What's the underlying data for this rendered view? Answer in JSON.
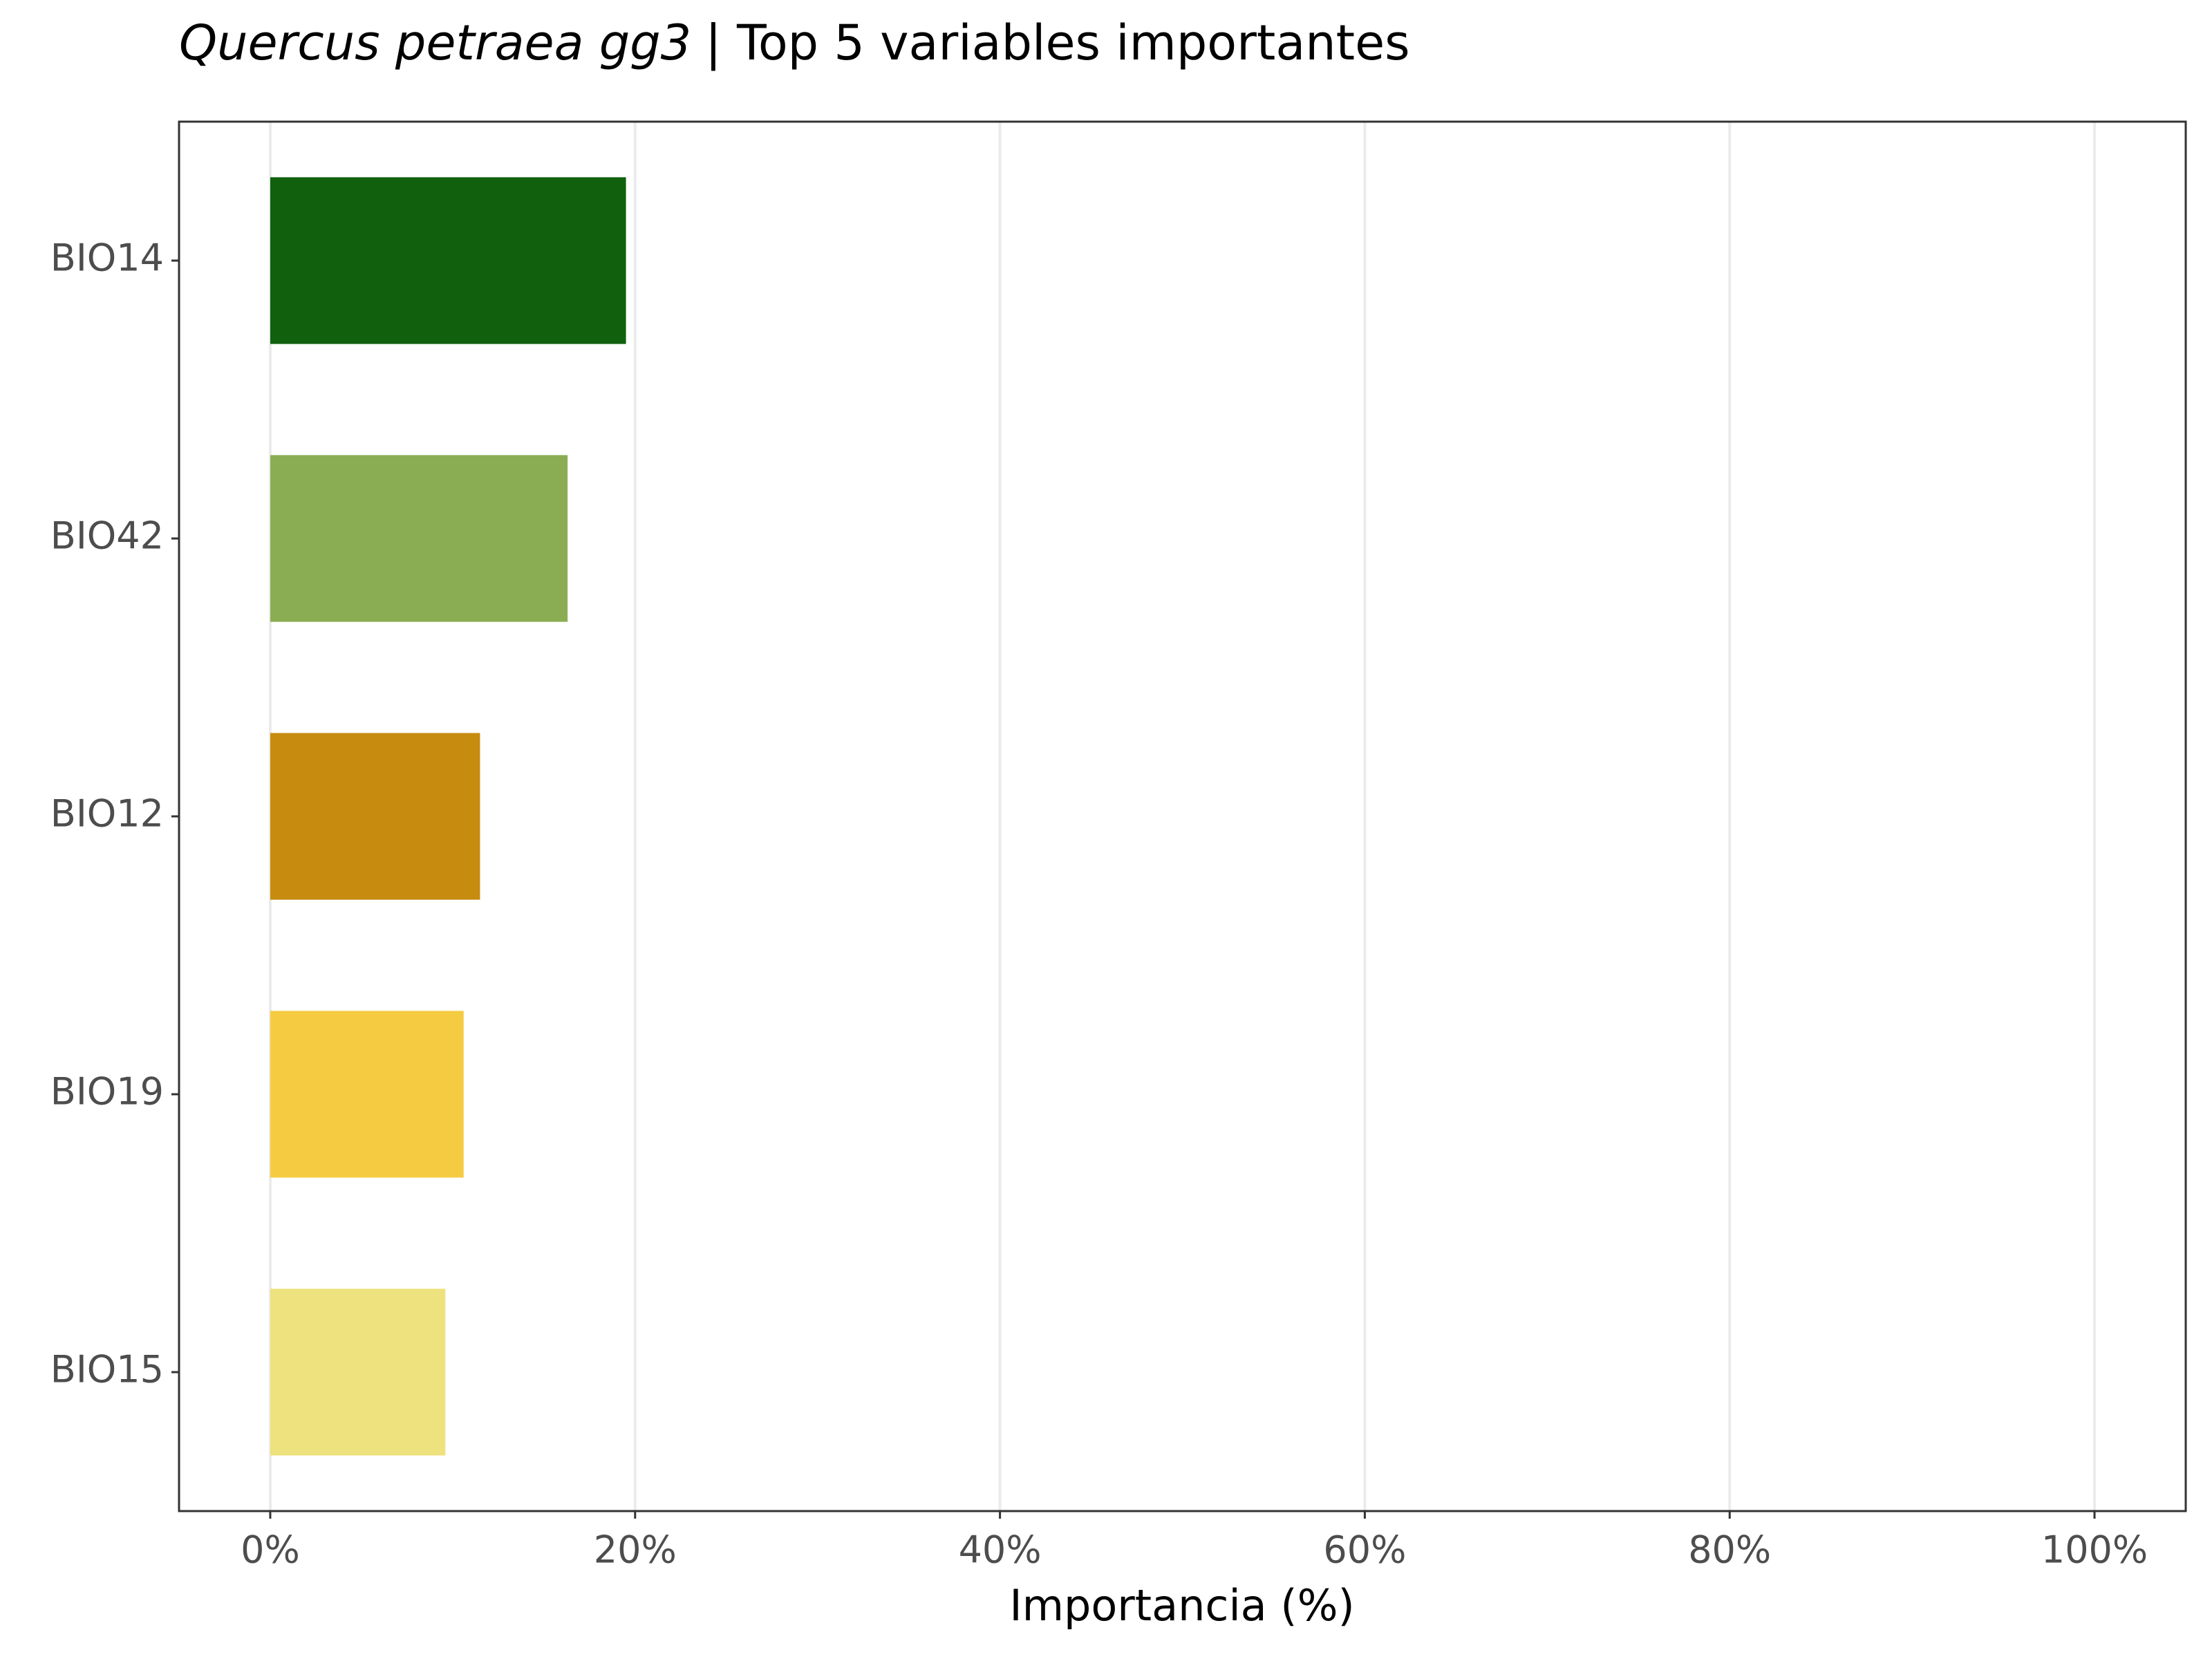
{
  "chart_data": {
    "type": "barh",
    "title": [
      "Quercus petraea gg3",
      "| Top 5 variables importantes"
    ],
    "x_label": "Importancia (%)",
    "categories": [
      "BIO14",
      "BIO42",
      "BIO12",
      "BIO19",
      "BIO15"
    ],
    "values": [
      19.5,
      16.3,
      11.5,
      10.6,
      9.6
    ],
    "colors": [
      "#10600e",
      "#8aad53",
      "#c78b10",
      "#f5cb42",
      "#ede27d"
    ],
    "xlim": [
      -5,
      105
    ],
    "xticks": [
      {
        "value": 0,
        "label": "0%"
      },
      {
        "value": 20,
        "label": "20%"
      },
      {
        "value": 40,
        "label": "40%"
      },
      {
        "value": 60,
        "label": "60%"
      },
      {
        "value": 80,
        "label": "80%"
      },
      {
        "value": 100,
        "label": "100%"
      }
    ],
    "grid": true
  }
}
